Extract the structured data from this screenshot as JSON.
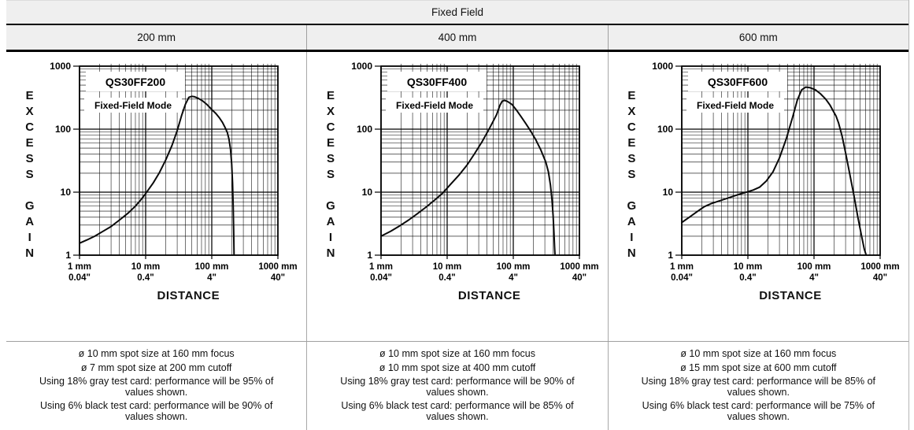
{
  "table": {
    "title": "Fixed Field",
    "columns": [
      "200 mm",
      "400 mm",
      "600 mm"
    ]
  },
  "chart_data": [
    {
      "type": "line",
      "title": "QS30FF200",
      "subtitle": "Fixed-Field Mode",
      "xlabel": "DISTANCE",
      "ylabel": "EXCESS GAIN",
      "x_scale": "log",
      "y_scale": "log",
      "xlim": [
        1,
        1000
      ],
      "ylim": [
        1,
        1000
      ],
      "grid": "log-log major and minor gridlines",
      "x_tick_values": [
        1,
        10,
        100,
        1000
      ],
      "x_tick_labels_mm": [
        "1 mm",
        "10 mm",
        "100 mm",
        "1000 mm"
      ],
      "x_tick_labels_inches": [
        "0.04\"",
        "0.4\"",
        "4\"",
        "40\""
      ],
      "y_tick_values": [
        1,
        10,
        100,
        1000
      ],
      "y_tick_labels": [
        "1",
        "10",
        "100",
        "1000"
      ],
      "series": [
        {
          "name": "excess gain vs distance (mm)",
          "x": [
            1,
            1.3,
            1.7,
            2.2,
            3,
            4,
            5.5,
            7,
            8.5,
            10,
            13,
            16,
            20,
            25,
            30,
            35,
            40,
            45,
            50,
            55,
            62,
            72,
            85,
            100,
            115,
            130,
            145,
            160,
            172,
            182,
            192,
            200,
            206,
            211,
            214,
            217
          ],
          "y": [
            1.55,
            1.75,
            2.0,
            2.35,
            2.85,
            3.6,
            4.7,
            6.0,
            7.6,
            9.5,
            14,
            20,
            32,
            55,
            95,
            165,
            250,
            320,
            332,
            326,
            310,
            283,
            245,
            205,
            178,
            152,
            128,
            105,
            88,
            70,
            48,
            28,
            14,
            6,
            2.5,
            1
          ]
        }
      ]
    },
    {
      "type": "line",
      "title": "QS30FF400",
      "subtitle": "Fixed-Field Mode",
      "xlabel": "DISTANCE",
      "ylabel": "EXCESS GAIN",
      "x_scale": "log",
      "y_scale": "log",
      "xlim": [
        1,
        1000
      ],
      "ylim": [
        1,
        1000
      ],
      "grid": "log-log major and minor gridlines",
      "x_tick_values": [
        1,
        10,
        100,
        1000
      ],
      "x_tick_labels_mm": [
        "1 mm",
        "10 mm",
        "100 mm",
        "1000 mm"
      ],
      "x_tick_labels_inches": [
        "0.04\"",
        "0.4\"",
        "4\"",
        "40\""
      ],
      "y_tick_values": [
        1,
        10,
        100,
        1000
      ],
      "y_tick_labels": [
        "1",
        "10",
        "100",
        "1000"
      ],
      "series": [
        {
          "name": "excess gain vs distance (mm)",
          "x": [
            1,
            1.4,
            1.9,
            2.6,
            3.5,
            4.7,
            6.3,
            8.5,
            11,
            15,
            20,
            26,
            34,
            44,
            56,
            63,
            68,
            74,
            82,
            95,
            110,
            130,
            155,
            185,
            220,
            260,
            310,
            340,
            365,
            385,
            400,
            412,
            422,
            428
          ],
          "y": [
            2.0,
            2.4,
            2.9,
            3.6,
            4.5,
            5.7,
            7.3,
            9.6,
            13,
            18.5,
            27,
            41,
            64,
            105,
            170,
            240,
            278,
            287,
            275,
            248,
            205,
            160,
            122,
            92,
            67,
            47,
            30,
            21,
            13,
            7.5,
            4.2,
            2.2,
            1.3,
            1
          ]
        }
      ]
    },
    {
      "type": "line",
      "title": "QS30FF600",
      "subtitle": "Fixed-Field Mode",
      "xlabel": "DISTANCE",
      "ylabel": "EXCESS GAIN",
      "x_scale": "log",
      "y_scale": "log",
      "xlim": [
        1,
        1000
      ],
      "ylim": [
        1,
        1000
      ],
      "grid": "log-log major and minor gridlines",
      "x_tick_values": [
        1,
        10,
        100,
        1000
      ],
      "x_tick_labels_mm": [
        "1 mm",
        "10 mm",
        "100 mm",
        "1000 mm"
      ],
      "x_tick_labels_inches": [
        "0.04\"",
        "0.4\"",
        "4\"",
        "40\""
      ],
      "y_tick_values": [
        1,
        10,
        100,
        1000
      ],
      "y_tick_labels": [
        "1",
        "10",
        "100",
        "1000"
      ],
      "series": [
        {
          "name": "excess gain vs distance (mm)",
          "x": [
            1,
            1.3,
            1.7,
            2.2,
            2.8,
            3.6,
            4.7,
            6,
            7.5,
            9.5,
            12,
            15,
            19,
            24,
            30,
            38,
            47,
            56,
            65,
            75,
            88,
            105,
            125,
            150,
            175,
            200,
            215,
            235,
            265,
            300,
            345,
            400,
            460,
            520,
            575,
            615
          ],
          "y": [
            3.3,
            4.0,
            4.9,
            5.9,
            6.6,
            7.2,
            7.9,
            8.6,
            9.3,
            10.0,
            10.8,
            12,
            15,
            21,
            35,
            70,
            150,
            290,
            420,
            465,
            455,
            420,
            365,
            300,
            240,
            185,
            162,
            125,
            78,
            42,
            20,
            9,
            4,
            2.1,
            1.25,
            1
          ]
        }
      ]
    }
  ],
  "notes": [
    [
      "ø 10 mm spot size at 160 mm focus",
      "ø 7 mm spot size at 200 mm cutoff",
      "Using 18% gray test card: performance will be 95% of\nvalues shown.",
      "Using 6% black test card: performance will be 90% of\nvalues shown."
    ],
    [
      "ø 10 mm spot size at 160 mm focus",
      "ø 10 mm spot size at 400 mm cutoff",
      "Using 18% gray test card: performance will be 90% of\nvalues shown.",
      "Using 6% black test card: performance will be 85% of\nvalues shown."
    ],
    [
      "ø 10 mm spot size at 160 mm focus",
      "ø 15 mm spot size at 600 mm cutoff",
      "Using 18% gray test card: performance will be 85% of\nvalues shown.",
      "Using 6% black test card: performance will be 75% of\nvalues shown."
    ]
  ],
  "colors": {
    "header_bg": "#efefef",
    "grid_line": "#000000",
    "curve": "#0a0a0a",
    "separator": "#a8a8a8",
    "text": "#111111"
  }
}
